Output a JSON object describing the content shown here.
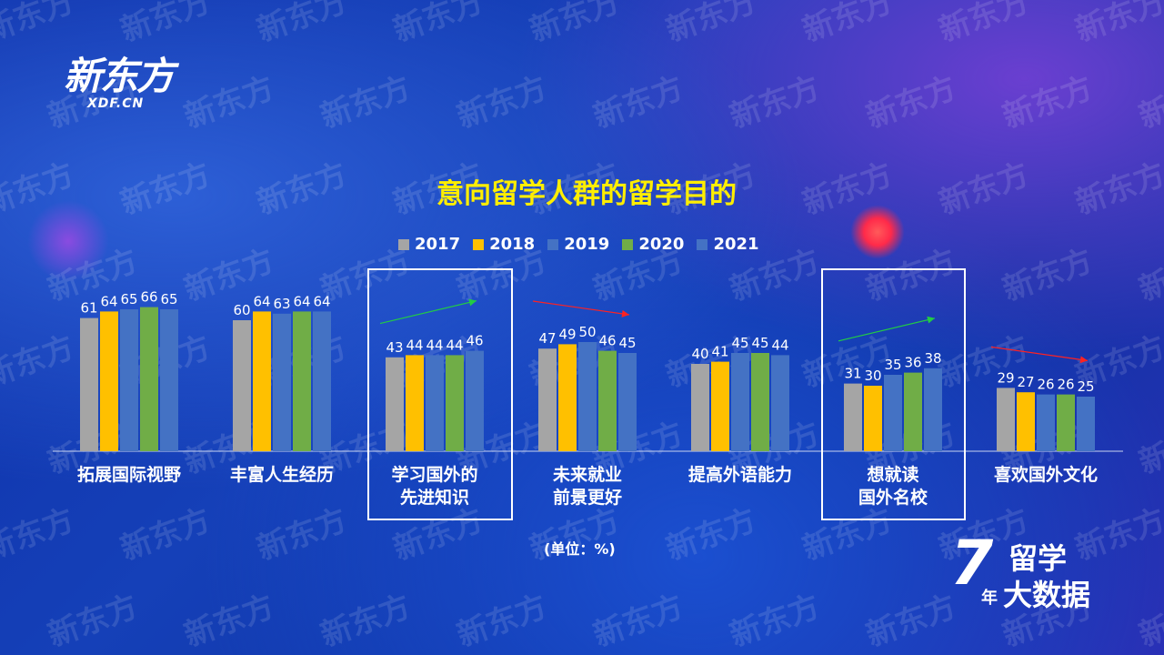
{
  "brand": {
    "logo_main": "新东方",
    "logo_sub": "XDF.CN",
    "watermark": "新东方"
  },
  "colors": {
    "2017": "#a5a5a5",
    "2018": "#ffc000",
    "2019": "#4472c4",
    "2020": "#70ad47",
    "2021": "#4472c4",
    "title": "#ffee00",
    "trend_up": "#22cc44",
    "trend_down": "#ff2222"
  },
  "unit_label": "(单位：%)",
  "footer_brand": {
    "num": "7",
    "unit": "年",
    "line1": "留学",
    "line2": "大数据"
  },
  "highlighted_categories": [
    "学习国外的先进知识",
    "想就读国外名校"
  ],
  "chart_data": {
    "type": "bar",
    "title": "意向留学人群的留学目的",
    "categories": [
      "拓展国际视野",
      "丰富人生经历",
      "学习国外的\n先进知识",
      "未来就业\n前景更好",
      "提高外语能力",
      "想就读\n国外名校",
      "喜欢国外文化"
    ],
    "series": [
      {
        "name": "2017",
        "values": [
          61,
          60,
          43,
          47,
          40,
          31,
          29
        ]
      },
      {
        "name": "2018",
        "values": [
          64,
          64,
          44,
          49,
          41,
          30,
          27
        ]
      },
      {
        "name": "2019",
        "values": [
          65,
          63,
          44,
          50,
          45,
          35,
          26
        ]
      },
      {
        "name": "2020",
        "values": [
          66,
          64,
          44,
          46,
          45,
          36,
          26
        ]
      },
      {
        "name": "2021",
        "values": [
          65,
          64,
          46,
          45,
          44,
          38,
          25
        ]
      }
    ],
    "ylim": [
      0,
      100
    ],
    "legend": "top-center",
    "grid": false,
    "trend_arrows": [
      "none",
      "none",
      "up",
      "down",
      "none",
      "up",
      "down"
    ]
  }
}
